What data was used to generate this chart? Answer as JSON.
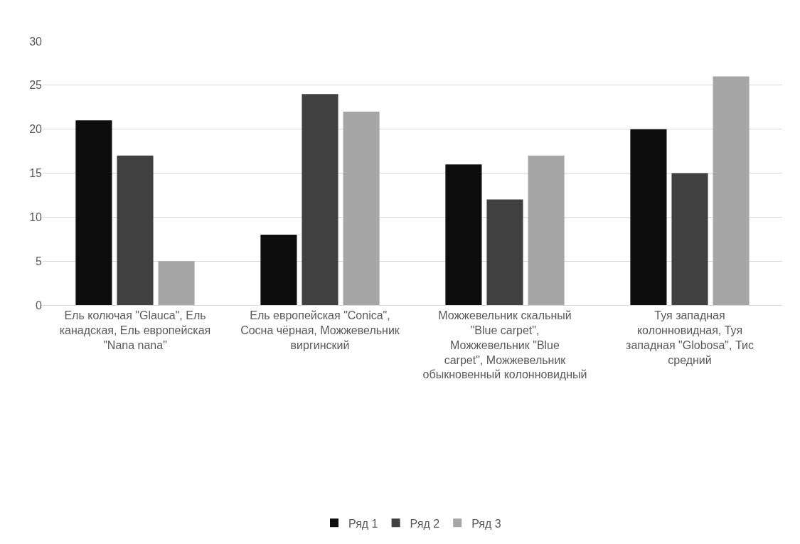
{
  "chart_data": {
    "type": "bar",
    "categories": [
      "Ель колючая \"Glauca\", Ель канадская, Ель европейская \"Nana nana\"",
      "Ель европейская \"Conica\", Сосна чёрная, Можжевельник виргинский",
      "Можжевельник скальный \"Blue carpet\", Можжевельник \"Blue carpet\", Можжевельник обыкновенный колонновидный",
      "Туя западная колонновидная, Туя западная \"Globosa\", Тис средний"
    ],
    "series": [
      {
        "name": "Ряд 1",
        "color": "#0d0d0d",
        "values": [
          21,
          8,
          16,
          20
        ]
      },
      {
        "name": "Ряд 2",
        "color": "#404040",
        "values": [
          17,
          24,
          12,
          15
        ]
      },
      {
        "name": "Ряд 3",
        "color": "#a6a6a6",
        "values": [
          5,
          22,
          17,
          26
        ]
      }
    ],
    "ylim": [
      0,
      30
    ],
    "yticks": [
      0,
      5,
      10,
      15,
      20,
      25,
      30
    ],
    "grid": "y",
    "legend": "bottom"
  }
}
